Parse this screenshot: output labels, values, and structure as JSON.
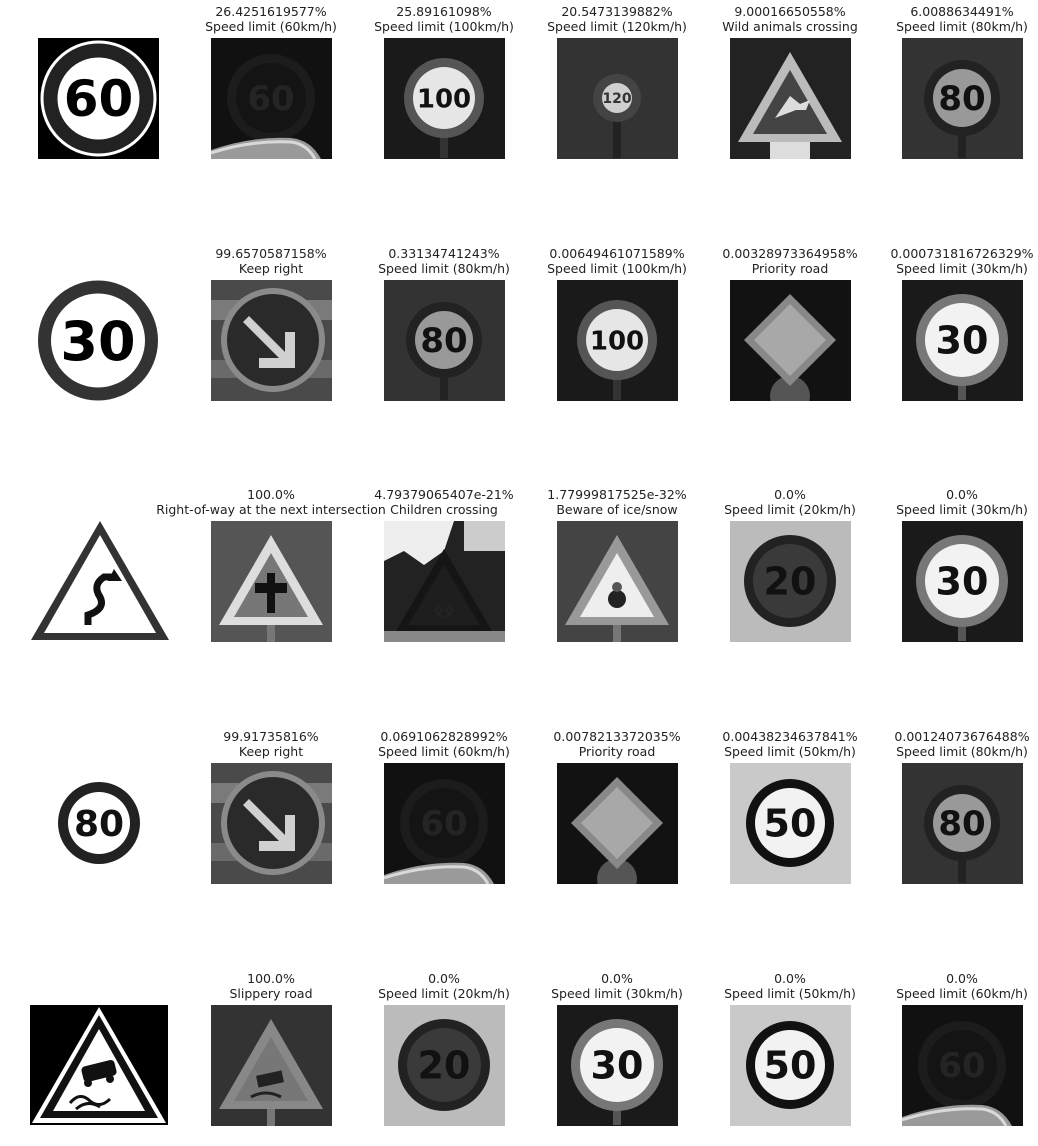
{
  "rows": [
    {
      "query_sign": "speed-limit-60-sign",
      "predictions": [
        {
          "prob": "26.4251619577%",
          "label": "Speed limit (60km/h)",
          "thumb": "speed-60-dark"
        },
        {
          "prob": "25.89161098%",
          "label": "Speed limit (100km/h)",
          "thumb": "speed-100"
        },
        {
          "prob": "20.5473139882%",
          "label": "Speed limit (120km/h)",
          "thumb": "speed-120-small"
        },
        {
          "prob": "9.00016650558%",
          "label": "Wild animals crossing",
          "thumb": "wild-animals"
        },
        {
          "prob": "6.0088634491%",
          "label": "Speed limit (80km/h)",
          "thumb": "speed-80"
        }
      ]
    },
    {
      "query_sign": "speed-limit-30-sign",
      "predictions": [
        {
          "prob": "99.6570587158%",
          "label": "Keep right",
          "thumb": "keep-right"
        },
        {
          "prob": "0.33134741243%",
          "label": "Speed limit (80km/h)",
          "thumb": "speed-80"
        },
        {
          "prob": "0.00649461071589%",
          "label": "Speed limit (100km/h)",
          "thumb": "speed-100"
        },
        {
          "prob": "0.00328973364958%",
          "label": "Priority road",
          "thumb": "priority-road"
        },
        {
          "prob": "0.000731816726329%",
          "label": "Speed limit (30km/h)",
          "thumb": "speed-30"
        }
      ]
    },
    {
      "query_sign": "double-curve-sign",
      "predictions": [
        {
          "prob": "100.0%",
          "label": "Right-of-way at the next intersection",
          "thumb": "right-of-way"
        },
        {
          "prob": "4.79379065407e-21%",
          "label": "Children crossing",
          "thumb": "children-crossing"
        },
        {
          "prob": "1.77999817525e-32%",
          "label": "Beware of ice/snow",
          "thumb": "ice-snow"
        },
        {
          "prob": "0.0%",
          "label": "Speed limit (20km/h)",
          "thumb": "speed-20"
        },
        {
          "prob": "0.0%",
          "label": "Speed limit (30km/h)",
          "thumb": "speed-30"
        }
      ]
    },
    {
      "query_sign": "speed-limit-80-sign",
      "predictions": [
        {
          "prob": "99.91735816%",
          "label": "Keep right",
          "thumb": "keep-right"
        },
        {
          "prob": "0.0691062828992%",
          "label": "Speed limit (60km/h)",
          "thumb": "speed-60-dark"
        },
        {
          "prob": "0.0078213372035%",
          "label": "Priority road",
          "thumb": "priority-road"
        },
        {
          "prob": "0.00438234637841%",
          "label": "Speed limit (50km/h)",
          "thumb": "speed-50"
        },
        {
          "prob": "0.00124073676488%",
          "label": "Speed limit (80km/h)",
          "thumb": "speed-80"
        }
      ]
    },
    {
      "query_sign": "slippery-road-sign",
      "predictions": [
        {
          "prob": "100.0%",
          "label": "Slippery road",
          "thumb": "slippery-road"
        },
        {
          "prob": "0.0%",
          "label": "Speed limit (20km/h)",
          "thumb": "speed-20"
        },
        {
          "prob": "0.0%",
          "label": "Speed limit (30km/h)",
          "thumb": "speed-30"
        },
        {
          "prob": "0.0%",
          "label": "Speed limit (50km/h)",
          "thumb": "speed-50"
        },
        {
          "prob": "0.0%",
          "label": "Speed limit (60km/h)",
          "thumb": "speed-60-dark"
        }
      ]
    }
  ],
  "sign_numbers": {
    "speed-limit-60-sign": "60",
    "speed-limit-30-sign": "30",
    "speed-limit-80-sign": "80",
    "speed-60-dark": "60",
    "speed-100": "100",
    "speed-120-small": "120",
    "speed-80": "80",
    "speed-30": "30",
    "speed-20": "20",
    "speed-50": "50"
  }
}
